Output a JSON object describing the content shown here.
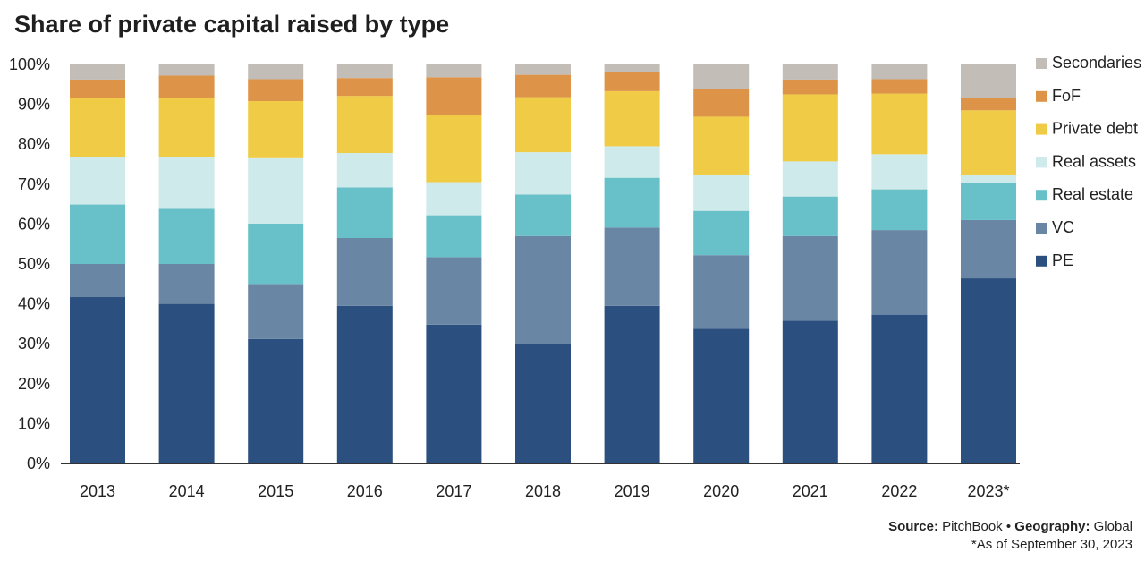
{
  "chart_data": {
    "type": "bar",
    "stacked": true,
    "title": "Share of private capital raised by type",
    "categories": [
      "2013",
      "2014",
      "2015",
      "2016",
      "2017",
      "2018",
      "2019",
      "2020",
      "2021",
      "2022",
      "2023*"
    ],
    "series": [
      {
        "name": "PE",
        "color": "#2b4f7e",
        "values": [
          41.7,
          40.0,
          31.2,
          39.5,
          34.8,
          30.0,
          39.5,
          33.8,
          35.8,
          37.3,
          46.4
        ]
      },
      {
        "name": "VC",
        "color": "#6a86a5",
        "values": [
          8.3,
          10.0,
          13.8,
          17.0,
          16.9,
          27.0,
          19.6,
          18.4,
          21.2,
          21.2,
          14.6
        ]
      },
      {
        "name": "Real estate",
        "color": "#68c1c9",
        "values": [
          14.9,
          13.8,
          15.1,
          12.7,
          10.5,
          10.4,
          12.5,
          11.1,
          9.9,
          10.2,
          9.2
        ]
      },
      {
        "name": "Real assets",
        "color": "#cfeaea",
        "values": [
          11.9,
          13.0,
          16.4,
          8.6,
          8.3,
          10.6,
          7.9,
          8.9,
          8.8,
          8.8,
          2.0
        ]
      },
      {
        "name": "Private debt",
        "color": "#f0cc46",
        "values": [
          14.9,
          14.8,
          14.3,
          14.3,
          16.9,
          13.8,
          13.8,
          14.7,
          16.8,
          15.2,
          16.3
        ]
      },
      {
        "name": "FoF",
        "color": "#de9448",
        "values": [
          4.5,
          5.6,
          5.5,
          4.5,
          9.4,
          5.6,
          4.8,
          6.9,
          3.7,
          3.6,
          3.1
        ]
      },
      {
        "name": "Secondaries",
        "color": "#c2beb7",
        "values": [
          3.8,
          2.8,
          3.7,
          3.4,
          3.2,
          2.6,
          1.9,
          6.2,
          3.8,
          3.7,
          8.4
        ]
      }
    ],
    "y_ticks": [
      "0%",
      "10%",
      "20%",
      "30%",
      "40%",
      "50%",
      "60%",
      "70%",
      "80%",
      "90%",
      "100%"
    ],
    "ylim": [
      0,
      100
    ],
    "legend_position": "right",
    "grid": false
  },
  "footer": {
    "source_label": "Source:",
    "source_value": "PitchBook",
    "separator": "•",
    "geography_label": "Geography:",
    "geography_value": "Global",
    "note": "*As of September 30, 2023"
  }
}
